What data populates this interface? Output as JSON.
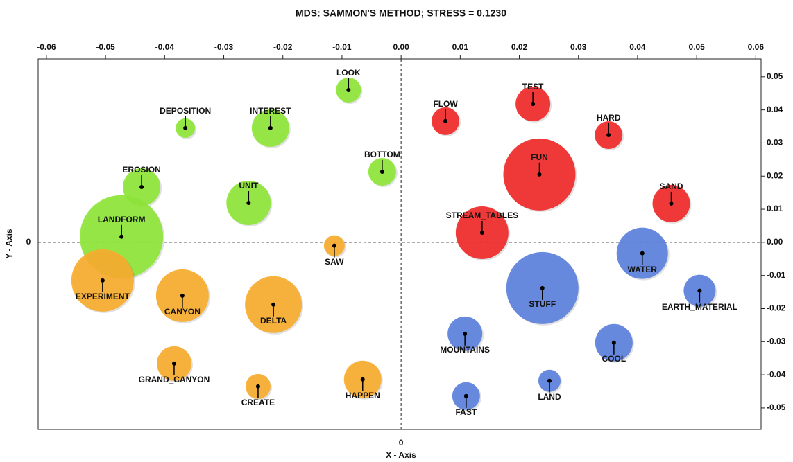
{
  "chart_data": {
    "type": "bubble",
    "title": "MDS: SAMMON'S METHOD; STRESS = 0.1230",
    "xlabel": "X - Axis",
    "ylabel": "Y - Axis",
    "origin_label": "0",
    "xlim": [
      -0.0614,
      0.0609
    ],
    "ylim": [
      -0.0565,
      0.0554
    ],
    "xticks": [
      -0.06,
      -0.05,
      -0.04,
      -0.03,
      -0.02,
      -0.01,
      {
        "value": 0,
        "label": "0.00"
      },
      0.01,
      0.02,
      0.03,
      0.04,
      0.05,
      0.06
    ],
    "yticks": [
      0.05,
      0.04,
      0.03,
      0.02,
      0.01,
      {
        "value": 0,
        "label": "0.00"
      },
      -0.01,
      -0.02,
      -0.03,
      -0.04,
      -0.05
    ],
    "series": [
      {
        "color": "#8ee53a",
        "labels": [
          "LOOK",
          "DEPOSITION",
          "INTEREST",
          "BOTTOM",
          "EROSION",
          "UNIT",
          "LANDFORM"
        ],
        "x": [
          -0.0089,
          -0.0365,
          -0.0221,
          -0.0032,
          -0.0439,
          -0.0258,
          -0.0473
        ],
        "values": [
          0.046,
          0.0345,
          0.0345,
          0.0213,
          0.0167,
          0.0119,
          0.0017
        ],
        "sizes": [
          18,
          14,
          27,
          20,
          27,
          32,
          60
        ]
      },
      {
        "color": "#f7ab2e",
        "labels": [
          "SAW",
          "EXPERIMENT",
          "CANYON",
          "DELTA",
          "GRAND_CANYON",
          "CREATE",
          "HAPPEN"
        ],
        "x": [
          -0.0113,
          -0.0505,
          -0.037,
          -0.0216,
          -0.0384,
          -0.0242,
          -0.0065
        ],
        "values": [
          -0.001,
          -0.0115,
          -0.0161,
          -0.0188,
          -0.0366,
          -0.0435,
          -0.0414
        ],
        "sizes": [
          15,
          45,
          38,
          41,
          25,
          18,
          27
        ]
      },
      {
        "color": "#f02a2a",
        "labels": [
          "FLOW",
          "TEST",
          "HARD",
          "FUN",
          "SAND",
          "STREAM_TABLES"
        ],
        "x": [
          0.0075,
          0.0223,
          0.0351,
          0.0234,
          0.0457,
          0.0137
        ],
        "values": [
          0.0366,
          0.0418,
          0.0324,
          0.0205,
          0.0117,
          0.0029
        ],
        "sizes": [
          20,
          25,
          20,
          52,
          27,
          38
        ]
      },
      {
        "color": "#5b80dc",
        "labels": [
          "WATER",
          "STUFF",
          "EARTH_MATERIAL",
          "MOUNTAINS",
          "COOL",
          "LAND",
          "FAST"
        ],
        "x": [
          0.0408,
          0.0239,
          0.0505,
          0.0108,
          0.036,
          0.0251,
          0.011
        ],
        "values": [
          -0.0033,
          -0.0138,
          -0.0146,
          -0.0276,
          -0.0303,
          -0.0418,
          -0.0464
        ],
        "sizes": [
          37,
          52,
          23,
          25,
          27,
          16,
          20
        ]
      }
    ]
  }
}
